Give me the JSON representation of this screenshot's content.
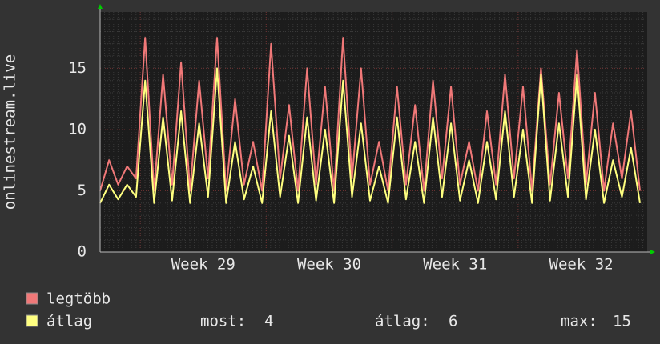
{
  "chart_data": {
    "type": "line",
    "ylabel": "onlinestream.live",
    "x": [
      0,
      0.5,
      1,
      1.5,
      2,
      2.5,
      3,
      3.5,
      4,
      4.5,
      5,
      5.5,
      6,
      6.5,
      7,
      7.5,
      8,
      8.5,
      9,
      9.5,
      10,
      10.5,
      11,
      11.5,
      12,
      12.5,
      13,
      13.5,
      14,
      14.5,
      15,
      15.5,
      16,
      16.5,
      17,
      17.5,
      18,
      18.5,
      19,
      19.5,
      20,
      20.5,
      21,
      21.5,
      22,
      22.5,
      23,
      23.5,
      24,
      24.5,
      25,
      25.5,
      26,
      26.5,
      27,
      27.5,
      28,
      28.5,
      29,
      29.5,
      30
    ],
    "series": [
      {
        "name": "legtöbb",
        "color": "#f07878",
        "values": [
          5,
          7.5,
          5.5,
          7,
          6,
          17.5,
          5,
          14.5,
          5.5,
          15.5,
          5,
          14,
          6,
          17.5,
          5,
          12.5,
          5.5,
          9,
          5,
          17,
          6,
          12,
          5,
          15,
          5.5,
          13.5,
          5,
          17.5,
          6,
          15,
          5.5,
          9,
          5,
          13.5,
          5.5,
          12,
          5,
          14,
          6,
          13.5,
          5.5,
          9,
          5,
          11.5,
          5.5,
          14.5,
          6,
          13.5,
          5,
          15,
          5.5,
          13,
          6,
          16.5,
          5.5,
          13,
          5,
          10.5,
          6,
          11.5,
          5
        ]
      },
      {
        "name": "átlag",
        "color": "#ffff80",
        "values": [
          4,
          5.5,
          4.3,
          5.5,
          4.5,
          14,
          4,
          11,
          4.2,
          11.5,
          4,
          10.5,
          4.5,
          15,
          4,
          9,
          4.3,
          7,
          4,
          11.5,
          4.5,
          9.5,
          4,
          11,
          4.2,
          10,
          4,
          14,
          4.5,
          10.5,
          4.2,
          7,
          4,
          11,
          4.3,
          9,
          4,
          11,
          4.5,
          10.5,
          4.2,
          7.5,
          4,
          9,
          4.3,
          11.5,
          4.5,
          10,
          4,
          14.5,
          4.2,
          10.5,
          4.5,
          14.5,
          4.3,
          10,
          4,
          7.5,
          4.5,
          8.5,
          4
        ]
      }
    ],
    "xlim": [
      0,
      30.4
    ],
    "xticks": [
      {
        "value": 2.23,
        "label": "Week 29"
      },
      {
        "value": 9.23,
        "label": "Week 30"
      },
      {
        "value": 16.23,
        "label": "Week 31"
      },
      {
        "value": 23.23,
        "label": "Week 32"
      }
    ],
    "ylim": [
      0,
      19.6
    ],
    "yticks": [
      0,
      5,
      10,
      15
    ],
    "grid": true,
    "stats": [
      {
        "label": "most:",
        "value": 4
      },
      {
        "label": "átlag:",
        "value": 6
      },
      {
        "label": "max:",
        "value": 15
      }
    ]
  }
}
